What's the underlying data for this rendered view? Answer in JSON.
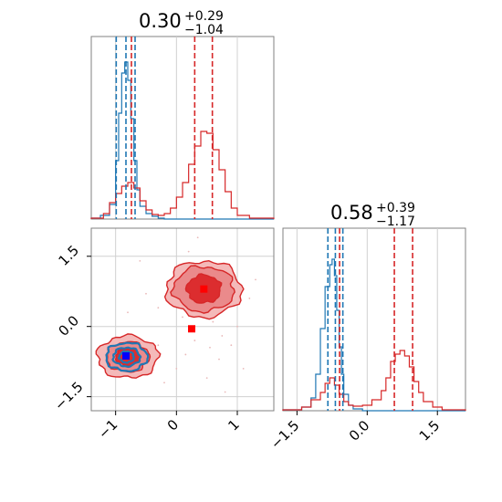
{
  "colors": {
    "blue": "#1f77b4",
    "red": "#d62728",
    "red_fill_light": "#f4b9b9",
    "red_fill_mid": "#ea8a8b",
    "red_fill_dark": "#dc2d2f",
    "grid": "#d0d0d0",
    "axes": "#808080",
    "marker_blue": "#0000ff",
    "marker_red": "#ff0000"
  },
  "chart_data": [
    {
      "panel": "top-left",
      "type": "histogram",
      "title": {
        "value": "0.30",
        "plus": "+0.29",
        "minus": "−1.04"
      },
      "x_range": [
        -1.4,
        1.6
      ],
      "x_ticks": [
        -1,
        0,
        1
      ],
      "series": [
        {
          "color": "blue",
          "bin_edges": [
            -1.4,
            -1.25,
            -1.1,
            -1.0,
            -0.95,
            -0.9,
            -0.85,
            -0.8,
            -0.75,
            -0.7,
            -0.65,
            -0.6,
            -0.5,
            -0.4,
            -0.3,
            -0.2,
            1.6
          ],
          "heights": [
            0.005,
            0.02,
            0.08,
            0.32,
            0.58,
            0.8,
            0.86,
            0.76,
            0.55,
            0.32,
            0.16,
            0.07,
            0.03,
            0.015,
            0.005,
            0
          ],
          "quantiles": [
            -0.99,
            -0.83,
            -0.68
          ]
        },
        {
          "color": "red",
          "bin_edges": [
            -1.4,
            -1.2,
            -1.1,
            -1.0,
            -0.9,
            -0.8,
            -0.7,
            -0.6,
            -0.5,
            -0.4,
            -0.3,
            -0.2,
            -0.1,
            0.0,
            0.1,
            0.2,
            0.3,
            0.4,
            0.5,
            0.6,
            0.7,
            0.8,
            0.9,
            1.0,
            1.2,
            1.6
          ],
          "heights": [
            0.005,
            0.03,
            0.09,
            0.14,
            0.18,
            0.2,
            0.17,
            0.1,
            0.05,
            0.025,
            0.02,
            0.03,
            0.06,
            0.12,
            0.2,
            0.3,
            0.4,
            0.48,
            0.47,
            0.38,
            0.27,
            0.15,
            0.06,
            0.02,
            0.005
          ],
          "quantiles": [
            -0.74,
            0.3,
            0.59
          ]
        }
      ]
    },
    {
      "panel": "bottom-right",
      "type": "histogram",
      "title": {
        "value": "0.58",
        "plus": "+0.39",
        "minus": "−1.17"
      },
      "x_range": [
        -1.8,
        2.1
      ],
      "x_ticks": [
        "−1.5",
        "0.0",
        "1.5"
      ],
      "x_tick_values": [
        -1.5,
        0.0,
        1.5
      ],
      "series": [
        {
          "color": "blue",
          "bin_edges": [
            -1.8,
            -1.4,
            -1.2,
            -1.1,
            -1.0,
            -0.9,
            -0.8,
            -0.75,
            -0.7,
            -0.65,
            -0.6,
            -0.55,
            -0.5,
            -0.4,
            -0.3,
            -0.1,
            2.1
          ],
          "heights": [
            0.005,
            0.02,
            0.07,
            0.2,
            0.45,
            0.68,
            0.8,
            0.83,
            0.74,
            0.55,
            0.35,
            0.2,
            0.09,
            0.03,
            0.01,
            0
          ],
          "quantiles": [
            -0.84,
            -0.68,
            -0.52
          ]
        },
        {
          "color": "red",
          "bin_edges": [
            -1.8,
            -1.4,
            -1.2,
            -1.0,
            -0.9,
            -0.8,
            -0.7,
            -0.6,
            -0.5,
            -0.4,
            -0.3,
            -0.1,
            0.1,
            0.3,
            0.4,
            0.5,
            0.6,
            0.7,
            0.8,
            0.9,
            1.0,
            1.1,
            1.2,
            1.4,
            1.6,
            2.1
          ],
          "heights": [
            0.005,
            0.02,
            0.06,
            0.1,
            0.15,
            0.18,
            0.14,
            0.09,
            0.05,
            0.03,
            0.025,
            0.03,
            0.06,
            0.11,
            0.18,
            0.27,
            0.31,
            0.33,
            0.3,
            0.24,
            0.16,
            0.1,
            0.05,
            0.02,
            0.005
          ],
          "quantiles": [
            -0.59,
            0.58,
            0.97
          ]
        }
      ]
    },
    {
      "panel": "bottom-left",
      "type": "contour",
      "x_range": [
        -1.4,
        1.6
      ],
      "y_range": [
        -1.8,
        2.1
      ],
      "x_ticks": [
        -1,
        0,
        1
      ],
      "y_ticks": [
        "−1.5",
        "0.0",
        "1.5"
      ],
      "y_tick_values": [
        -1.5,
        0.0,
        1.5
      ],
      "red_modes": [
        {
          "cx": -0.8,
          "cy": -0.65,
          "levels": [
            [
              0.5,
              0.45
            ],
            [
              0.35,
              0.32
            ],
            [
              0.2,
              0.18
            ]
          ]
        },
        {
          "cx": 0.45,
          "cy": 0.8,
          "levels": [
            [
              0.62,
              0.6
            ],
            [
              0.5,
              0.48
            ],
            [
              0.28,
              0.3
            ]
          ]
        }
      ],
      "blue_mode": {
        "cx": -0.82,
        "cy": -0.65,
        "levels": [
          [
            0.34,
            0.3
          ],
          [
            0.22,
            0.2
          ],
          [
            0.12,
            0.12
          ]
        ]
      },
      "markers": [
        {
          "color": "marker_red",
          "x": 0.45,
          "y": 0.8
        },
        {
          "color": "marker_red",
          "x": 0.25,
          "y": -0.05
        },
        {
          "color": "marker_blue",
          "x": -0.83,
          "y": -0.63
        }
      ],
      "scatter_points": [
        [
          0.1,
          0.2
        ],
        [
          0.3,
          -0.3
        ],
        [
          0.6,
          0.1
        ],
        [
          -0.3,
          0.4
        ],
        [
          0.9,
          -0.4
        ],
        [
          1.2,
          0.6
        ],
        [
          0.0,
          -0.9
        ],
        [
          -0.2,
          -1.2
        ],
        [
          0.5,
          -1.1
        ],
        [
          0.7,
          -0.7
        ],
        [
          -0.5,
          0.7
        ],
        [
          1.3,
          1.0
        ],
        [
          0.2,
          1.6
        ],
        [
          -0.6,
          1.4
        ],
        [
          0.8,
          -1.4
        ],
        [
          -0.1,
          0.9
        ],
        [
          0.4,
          0.3
        ],
        [
          1.0,
          0.0
        ],
        [
          -0.3,
          -0.4
        ],
        [
          0.15,
          -0.6
        ],
        [
          0.55,
          -0.45
        ],
        [
          0.75,
          -0.2
        ],
        [
          1.1,
          -0.9
        ],
        [
          -0.8,
          0.3
        ],
        [
          0.35,
          1.9
        ]
      ]
    }
  ]
}
